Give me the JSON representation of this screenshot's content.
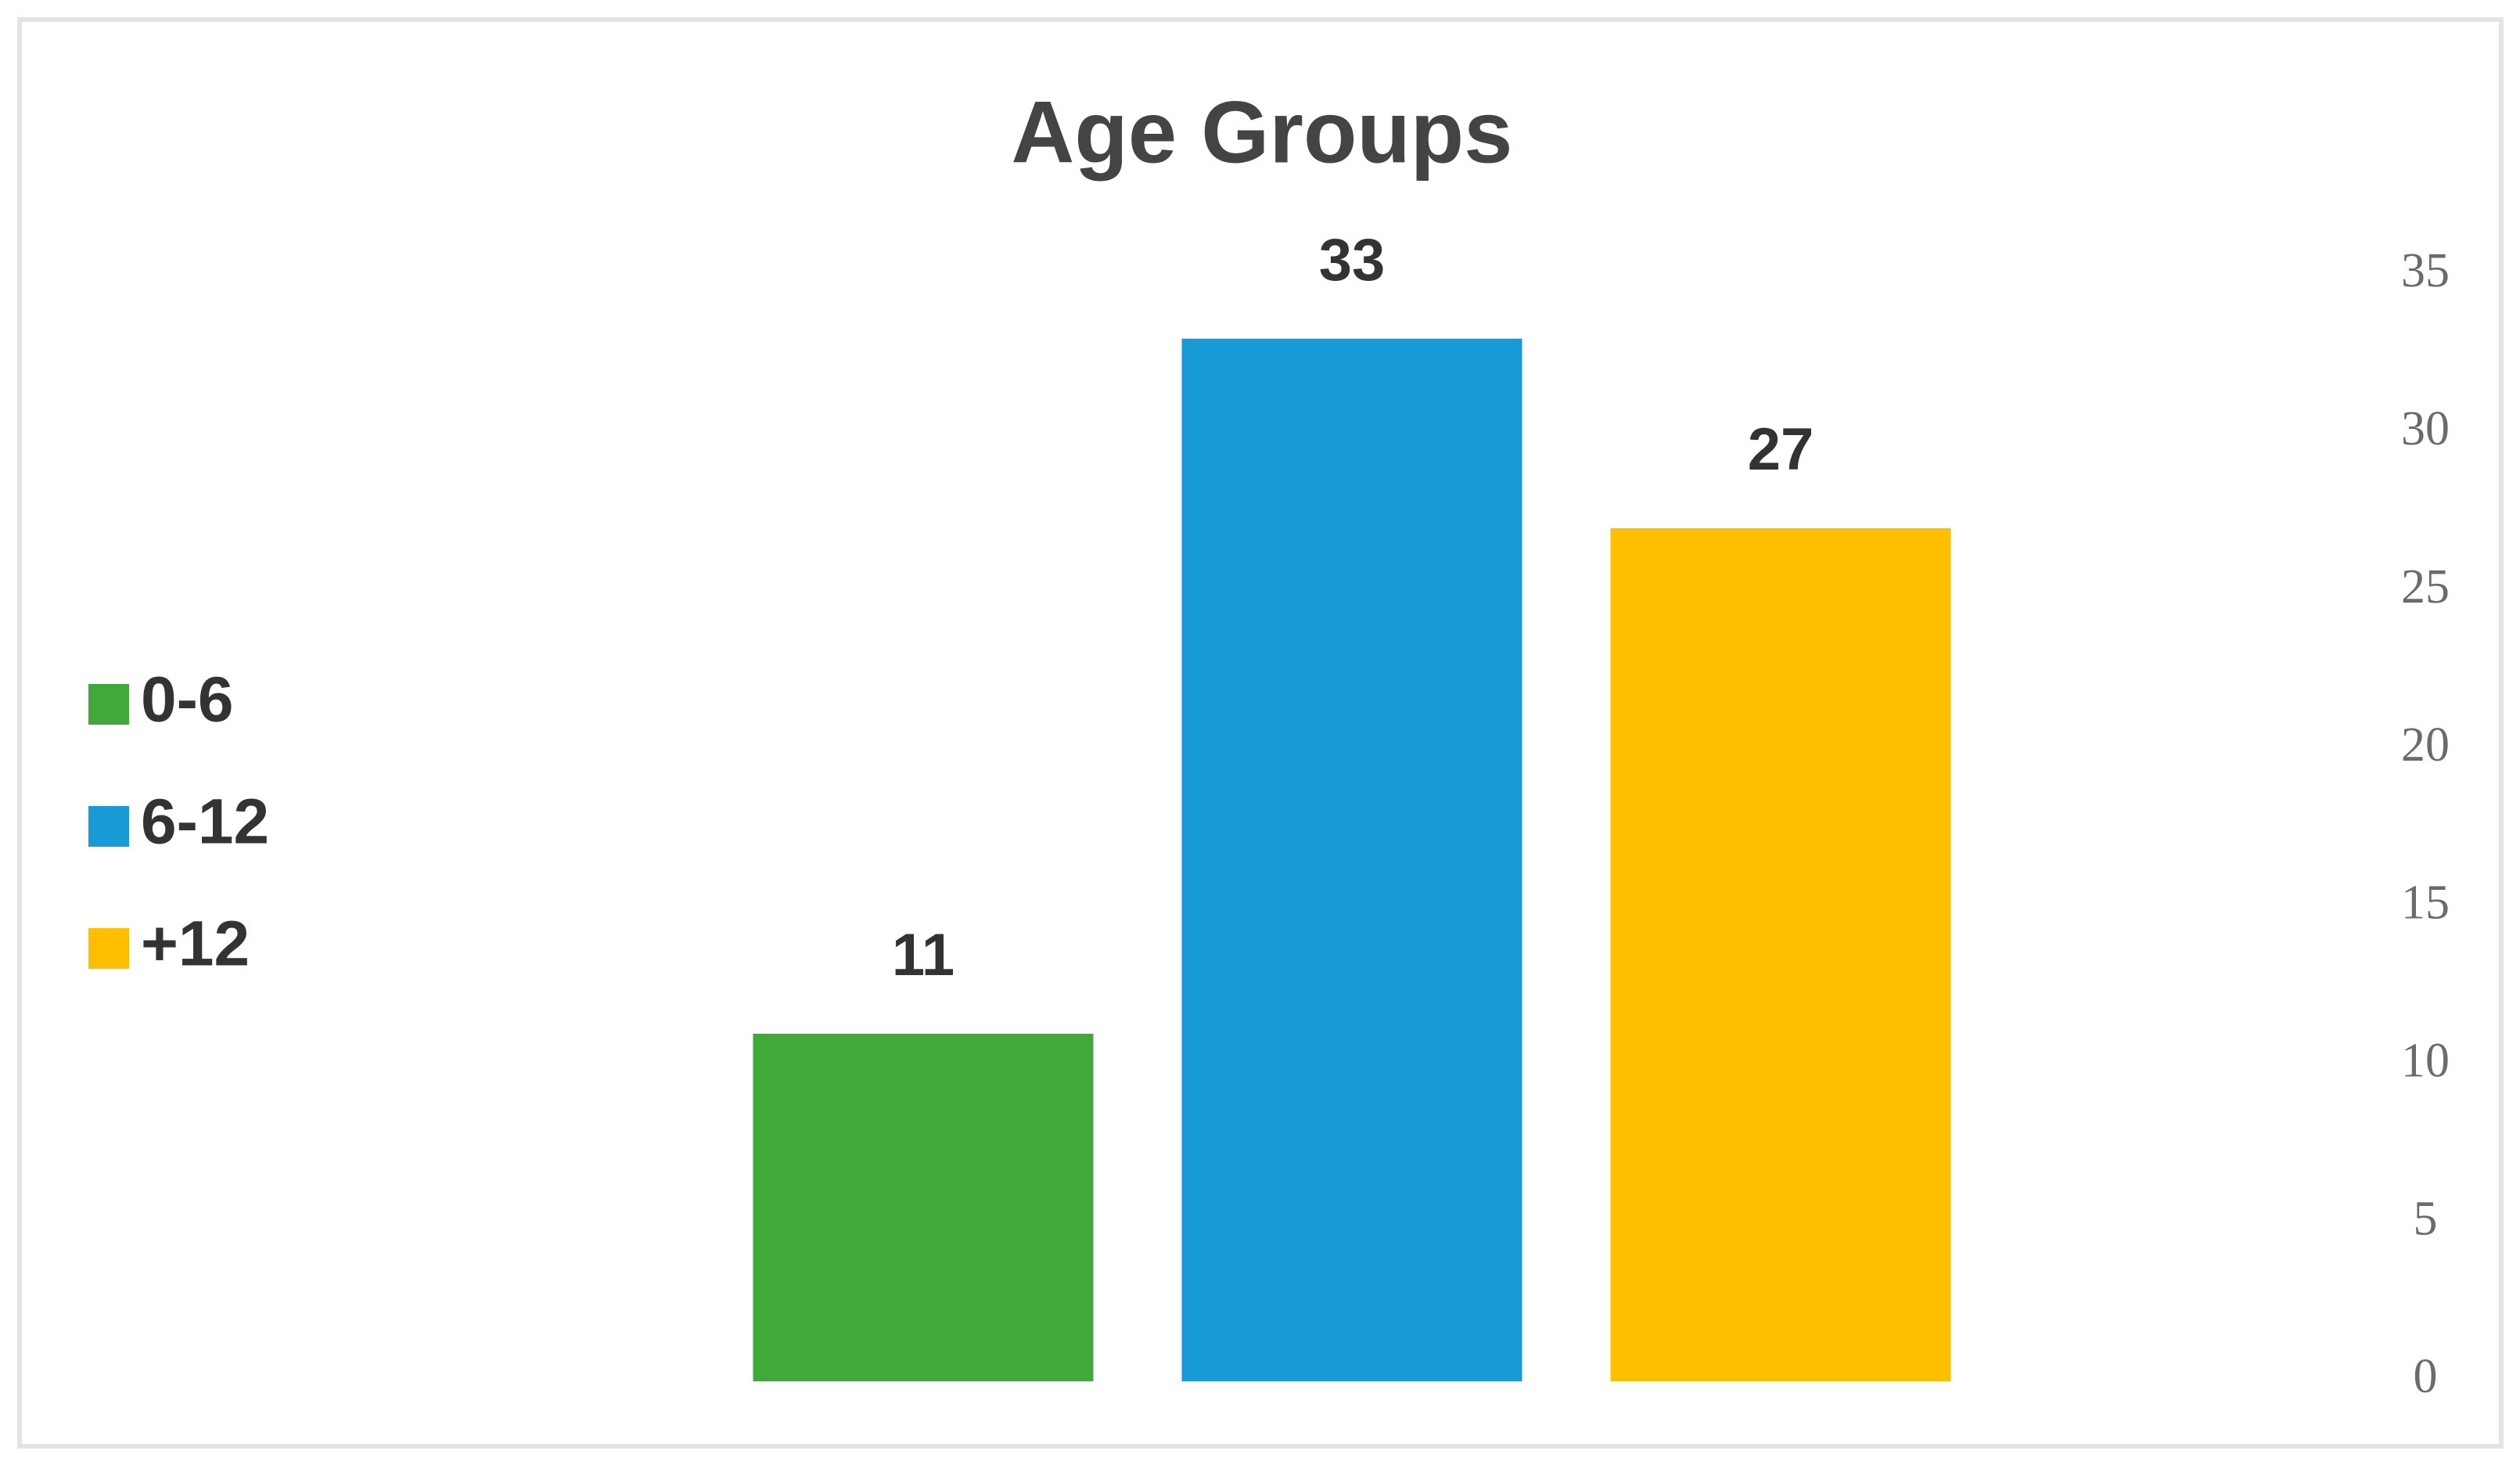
{
  "chart_data": {
    "type": "bar",
    "title": "Age Groups",
    "series": [
      {
        "name": "0-6",
        "color": "#41a93a",
        "values": [
          11
        ]
      },
      {
        "name": "6-12",
        "color": "#189ad6",
        "values": [
          33
        ]
      },
      {
        "name": "+12",
        "color": "#fdbf00",
        "values": [
          27
        ]
      }
    ],
    "ylim": [
      0,
      35
    ],
    "yticks": [
      0,
      5,
      10,
      15,
      20,
      25,
      30,
      35
    ],
    "y_axis_side": "right",
    "grid": false,
    "legend": "left"
  }
}
